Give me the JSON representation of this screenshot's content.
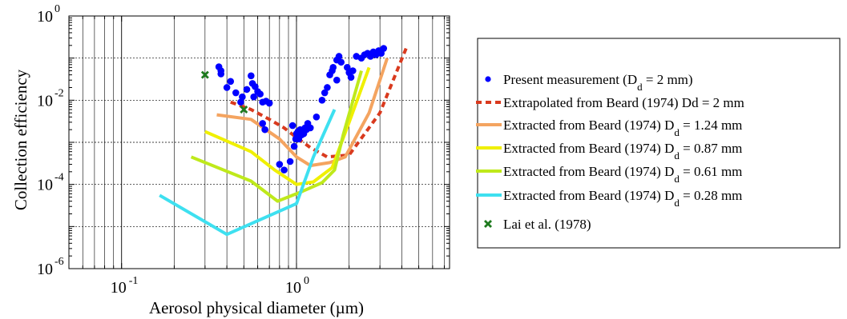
{
  "chart_data": {
    "type": "scatter",
    "xlabel": "Aerosol physical diameter (µm)",
    "ylabel": "Collection efficiency",
    "xscale": "log",
    "yscale": "log",
    "xlim": [
      0.05,
      7.5
    ],
    "ylim": [
      1e-06,
      1
    ],
    "grid": true,
    "legend_position": "right",
    "x_ticks": [
      {
        "value": 0.1,
        "base": "10",
        "exp": "-1"
      },
      {
        "value": 1,
        "base": "10",
        "exp": "0"
      }
    ],
    "y_ticks": [
      {
        "value": 1,
        "base": "10",
        "exp": "0"
      },
      {
        "value": 0.01,
        "base": "10",
        "exp": "-2"
      },
      {
        "value": 0.0001,
        "base": "10",
        "exp": "-4"
      },
      {
        "value": 1e-06,
        "base": "10",
        "exp": "-6"
      }
    ],
    "series": [
      {
        "name": "Present measurement (D_d = 2 mm)",
        "legend_text": "Present measurement (D",
        "legend_sub": "d",
        "legend_tail": " = 2 mm)",
        "kind": "scatter",
        "marker": "dot",
        "color": "#0000ff",
        "points": [
          [
            0.36,
            0.062
          ],
          [
            0.37,
            0.05
          ],
          [
            0.37,
            0.042
          ],
          [
            0.4,
            0.02
          ],
          [
            0.42,
            0.028
          ],
          [
            0.45,
            0.015
          ],
          [
            0.48,
            0.009
          ],
          [
            0.49,
            0.012
          ],
          [
            0.52,
            0.018
          ],
          [
            0.55,
            0.038
          ],
          [
            0.56,
            0.025
          ],
          [
            0.57,
            0.012
          ],
          [
            0.58,
            0.021
          ],
          [
            0.6,
            0.016
          ],
          [
            0.62,
            0.014
          ],
          [
            0.64,
            0.009
          ],
          [
            0.67,
            0.0095
          ],
          [
            0.7,
            0.0085
          ],
          [
            0.64,
            0.0028
          ],
          [
            0.66,
            0.002
          ],
          [
            0.8,
            0.0003
          ],
          [
            0.85,
            0.00022
          ],
          [
            0.92,
            0.00035
          ],
          [
            0.95,
            0.0025
          ],
          [
            0.97,
            0.0008
          ],
          [
            0.99,
            0.0012
          ],
          [
            1.0,
            0.0016
          ],
          [
            1.02,
            0.0018
          ],
          [
            1.03,
            0.0012
          ],
          [
            1.05,
            0.002
          ],
          [
            1.07,
            0.0015
          ],
          [
            1.1,
            0.0016
          ],
          [
            1.12,
            0.0022
          ],
          [
            1.14,
            0.002
          ],
          [
            1.16,
            0.0028
          ],
          [
            1.2,
            0.0022
          ],
          [
            1.4,
            0.01
          ],
          [
            1.45,
            0.015
          ],
          [
            1.5,
            0.02
          ],
          [
            1.55,
            0.04
          ],
          [
            1.6,
            0.05
          ],
          [
            1.62,
            0.06
          ],
          [
            1.7,
            0.09
          ],
          [
            1.75,
            0.11
          ],
          [
            1.8,
            0.08
          ],
          [
            1.95,
            0.06
          ],
          [
            2.0,
            0.045
          ],
          [
            2.05,
            0.035
          ],
          [
            2.1,
            0.05
          ],
          [
            2.2,
            0.11
          ],
          [
            2.35,
            0.1
          ],
          [
            2.45,
            0.12
          ],
          [
            2.55,
            0.13
          ],
          [
            2.65,
            0.11
          ],
          [
            2.75,
            0.14
          ],
          [
            2.85,
            0.12
          ],
          [
            2.95,
            0.15
          ],
          [
            3.05,
            0.13
          ],
          [
            3.15,
            0.17
          ],
          [
            1.3,
            0.004
          ],
          [
            1.7,
            0.03
          ]
        ]
      },
      {
        "name": "Extrapolated from Beard (1974) D_d = 2 mm",
        "legend_text": "Extrapolated from Beard (1974) D",
        "legend_sub": "",
        "legend_tail": "d = 2 mm",
        "kind": "line",
        "dashed": true,
        "color": "#d93a1e",
        "points": [
          [
            0.42,
            0.009
          ],
          [
            0.55,
            0.006
          ],
          [
            0.7,
            0.0035
          ],
          [
            0.85,
            0.0022
          ],
          [
            1.0,
            0.0013
          ],
          [
            1.2,
            0.00075
          ],
          [
            1.5,
            0.00045
          ],
          [
            2.0,
            0.0005
          ],
          [
            3.0,
            0.005
          ],
          [
            4.3,
            0.2
          ]
        ]
      },
      {
        "name": "Extracted from Beard (1974) D_d = 1.24 mm",
        "legend_text": "Extracted from Beard (1974) D",
        "legend_sub": "d",
        "legend_tail": " = 1.24 mm",
        "kind": "line",
        "color": "#f4a460",
        "points": [
          [
            0.35,
            0.0045
          ],
          [
            0.55,
            0.0035
          ],
          [
            0.8,
            0.0012
          ],
          [
            1.0,
            0.00045
          ],
          [
            1.2,
            0.00028
          ],
          [
            1.55,
            0.00033
          ],
          [
            1.9,
            0.00045
          ],
          [
            2.6,
            0.005
          ],
          [
            3.3,
            0.1
          ]
        ]
      },
      {
        "name": "Extracted from Beard (1974) D_d = 0.87 mm",
        "legend_text": "Extracted from Beard (1974) D",
        "legend_sub": "d",
        "legend_tail": " = 0.87 mm",
        "kind": "line",
        "color": "#f0f000",
        "points": [
          [
            0.3,
            0.0018
          ],
          [
            0.55,
            0.0006
          ],
          [
            0.75,
            0.00022
          ],
          [
            1.0,
            0.0001
          ],
          [
            1.25,
            0.000115
          ],
          [
            1.6,
            0.00025
          ],
          [
            2.0,
            0.003
          ],
          [
            2.6,
            0.06
          ]
        ]
      },
      {
        "name": "Extracted from Beard (1974) D_d = 0.61 mm",
        "legend_text": "Extracted from Beard (1974) D",
        "legend_sub": "d",
        "legend_tail": " = 0.61 mm",
        "kind": "line",
        "color": "#bfe91b",
        "points": [
          [
            0.25,
            0.00045
          ],
          [
            0.55,
            0.00012
          ],
          [
            0.78,
            4e-05
          ],
          [
            1.05,
            6.5e-05
          ],
          [
            1.4,
            0.00011
          ],
          [
            1.65,
            0.00022
          ],
          [
            1.85,
            0.0015
          ],
          [
            2.35,
            0.05
          ]
        ]
      },
      {
        "name": "Extracted from Beard (1974) D_d = 0.28 mm",
        "legend_text": "Extracted from Beard (1974) D",
        "legend_sub": "d",
        "legend_tail": " = 0.28 mm",
        "kind": "line",
        "color": "#3ee0f0",
        "points": [
          [
            0.165,
            5.5e-05
          ],
          [
            0.4,
            6.5e-06
          ],
          [
            1.0,
            3.5e-05
          ],
          [
            1.25,
            0.00045
          ],
          [
            1.65,
            0.006
          ]
        ]
      },
      {
        "name": "Lai et al. (1978)",
        "legend_text": "Lai et al. (1978)",
        "legend_sub": "",
        "legend_tail": "",
        "kind": "scatter",
        "marker": "x",
        "color": "#1e7a1e",
        "points": [
          [
            0.3,
            0.04
          ],
          [
            0.5,
            0.006
          ]
        ]
      }
    ]
  }
}
